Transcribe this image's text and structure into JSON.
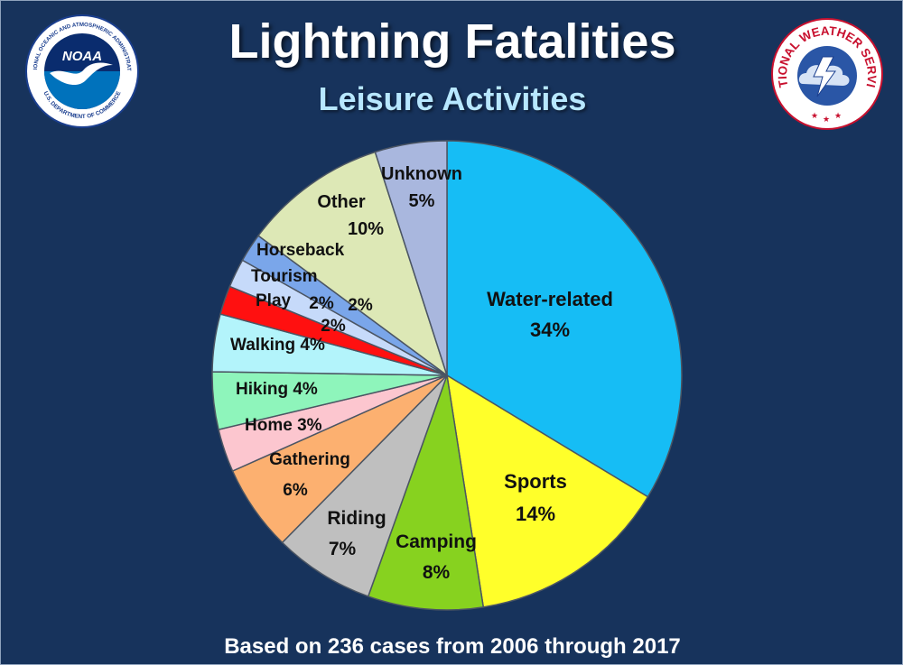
{
  "header": {
    "title": "Lightning Fatalities",
    "subtitle": "Leisure Activities"
  },
  "footer": {
    "note": "Based on 236 cases from 2006 through 2017"
  },
  "logos": {
    "noaa": {
      "wordmark": "NOAA",
      "ring_top": "NATIONAL OCEANIC AND ATMOSPHERIC ADMINISTRATION",
      "ring_bottom": "U.S. DEPARTMENT OF COMMERCE",
      "colors": {
        "ring": "#ffffff",
        "inner": "#0072bc",
        "text": "#1b3f8f"
      }
    },
    "nws": {
      "ring_text": "NATIONAL WEATHER SERVICE",
      "colors": {
        "ring": "#ffffff",
        "text": "#c8102e",
        "inner": "#2a56a6"
      }
    }
  },
  "chart_data": {
    "type": "pie",
    "title": "Lightning Fatalities",
    "subtitle": "Leisure Activities",
    "start": "12 o'clock",
    "direction": "clockwise",
    "slices": [
      {
        "label": "Water-related",
        "value": 34,
        "value_text": "34%",
        "color": "#16bdf5"
      },
      {
        "label": "Sports",
        "value": 14,
        "value_text": "14%",
        "color": "#ffff2a"
      },
      {
        "label": "Camping",
        "value": 8,
        "value_text": "8%",
        "color": "#87d21f"
      },
      {
        "label": "Riding",
        "value": 7,
        "value_text": "7%",
        "color": "#bfbfbf"
      },
      {
        "label": "Gathering",
        "value": 6,
        "value_text": "6%",
        "color": "#fcb070"
      },
      {
        "label": "Home",
        "value": 3,
        "value_text": "3%",
        "color": "#fcc6cf"
      },
      {
        "label": "Hiking",
        "value": 4,
        "value_text": "4%",
        "color": "#8ef5bb"
      },
      {
        "label": "Walking",
        "value": 4,
        "value_text": "4%",
        "color": "#b3f4fb"
      },
      {
        "label": "Play",
        "value": 2,
        "value_text": "2%",
        "color": "#ff1010"
      },
      {
        "label": "Tourism",
        "value": 2,
        "value_text": "2%",
        "color": "#c6dafa"
      },
      {
        "label": "Horseback",
        "value": 2,
        "value_text": "2%",
        "color": "#7aa6ea"
      },
      {
        "label": "Other",
        "value": 10,
        "value_text": "10%",
        "color": "#dde8b6"
      },
      {
        "label": "Unknown",
        "value": 5,
        "value_text": "5%",
        "color": "#a9b7de"
      }
    ]
  }
}
